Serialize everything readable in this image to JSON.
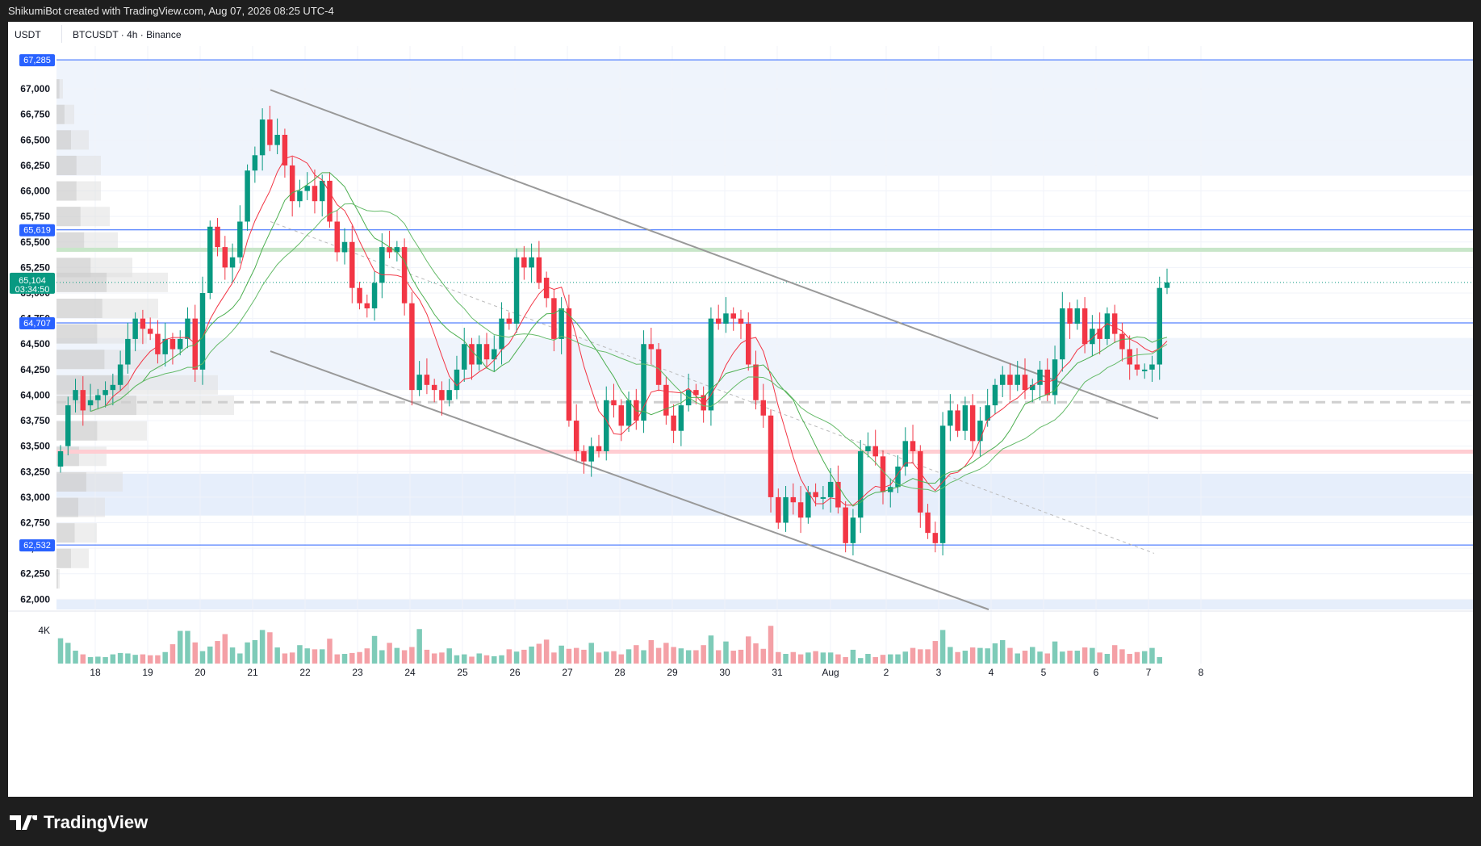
{
  "header": {
    "credit": "ShikumiBot created with TradingView.com, Aug 07, 2026 08:25 UTC-4"
  },
  "topbar": {
    "unit": "USDT",
    "symbol": "BTCUSDT · 4h · Binance"
  },
  "footer": {
    "brand": "TradingView"
  },
  "colors": {
    "up": "#089981",
    "down": "#f23645",
    "upVol": "#7ecbb8",
    "downVol": "#f4a0a6",
    "level": "#2962ff",
    "trend": "#999999"
  },
  "chart_data": {
    "type": "candlestick",
    "symbol": "BTCUSDT",
    "interval": "4h",
    "exchange": "Binance",
    "ylim": [
      61900,
      67450
    ],
    "y_ticks": [
      "62,000",
      "62,250",
      "62,500",
      "62,750",
      "63,000",
      "63,250",
      "63,500",
      "63,750",
      "64,000",
      "64,250",
      "64,500",
      "64,750",
      "65,000",
      "65,250",
      "65,500",
      "65,750",
      "66,000",
      "66,250",
      "66,500",
      "66,750",
      "67,000"
    ],
    "x_ticks": [
      "18",
      "19",
      "20",
      "21",
      "22",
      "23",
      "24",
      "25",
      "26",
      "27",
      "28",
      "29",
      "30",
      "31",
      "Aug",
      "2",
      "3",
      "4",
      "5",
      "6",
      "7",
      "8"
    ],
    "price_labels": [
      {
        "text": "67,285",
        "value": 67285,
        "kind": "level"
      },
      {
        "text": "65,619",
        "value": 65619,
        "kind": "level"
      },
      {
        "text": "65,104",
        "sub": "03:34:50",
        "value": 65104,
        "kind": "last"
      },
      {
        "text": "64,707",
        "value": 64707,
        "kind": "level"
      },
      {
        "text": "62,532",
        "value": 62532,
        "kind": "level"
      }
    ],
    "volume_tick": "4K",
    "candles_open_close": [
      [
        63300,
        63450
      ],
      [
        63500,
        63900
      ],
      [
        63950,
        64050
      ],
      [
        64050,
        63850
      ],
      [
        63900,
        63950
      ],
      [
        63950,
        64000
      ],
      [
        64000,
        64050
      ],
      [
        64050,
        64100
      ],
      [
        64100,
        64300
      ],
      [
        64300,
        64550
      ],
      [
        64550,
        64750
      ],
      [
        64750,
        64650
      ],
      [
        64650,
        64600
      ],
      [
        64600,
        64400
      ],
      [
        64400,
        64550
      ],
      [
        64550,
        64450
      ],
      [
        64450,
        64550
      ],
      [
        64550,
        64750
      ],
      [
        64750,
        64250
      ],
      [
        64250,
        65000
      ],
      [
        65000,
        65650
      ],
      [
        65650,
        65450
      ],
      [
        65450,
        65250
      ],
      [
        65250,
        65350
      ],
      [
        65350,
        65700
      ],
      [
        65700,
        66200
      ],
      [
        66200,
        66350
      ],
      [
        66350,
        66700
      ],
      [
        66700,
        66450
      ],
      [
        66450,
        66550
      ],
      [
        66550,
        66250
      ],
      [
        66250,
        65900
      ],
      [
        65900,
        66000
      ],
      [
        66000,
        66050
      ],
      [
        66050,
        65900
      ],
      [
        65900,
        66100
      ],
      [
        66100,
        65700
      ],
      [
        65700,
        65400
      ],
      [
        65400,
        65500
      ],
      [
        65500,
        65050
      ],
      [
        65050,
        64900
      ],
      [
        64900,
        64850
      ],
      [
        64850,
        65100
      ],
      [
        65100,
        65450
      ],
      [
        65450,
        65400
      ],
      [
        65400,
        65450
      ],
      [
        65450,
        64900
      ],
      [
        64900,
        64050
      ],
      [
        64050,
        64200
      ],
      [
        64200,
        64100
      ],
      [
        64100,
        64050
      ],
      [
        64050,
        63950
      ],
      [
        63950,
        64050
      ],
      [
        64050,
        64250
      ],
      [
        64250,
        64500
      ],
      [
        64500,
        64300
      ],
      [
        64300,
        64500
      ],
      [
        64500,
        64350
      ],
      [
        64350,
        64450
      ],
      [
        64450,
        64750
      ],
      [
        64750,
        64700
      ],
      [
        64700,
        65350
      ],
      [
        65350,
        65250
      ],
      [
        65250,
        65350
      ],
      [
        65350,
        65100
      ],
      [
        65150,
        64950
      ],
      [
        64950,
        64550
      ],
      [
        64550,
        64850
      ],
      [
        64850,
        63750
      ],
      [
        63750,
        63450
      ],
      [
        63450,
        63350
      ],
      [
        63350,
        63500
      ],
      [
        63500,
        63450
      ],
      [
        63450,
        63950
      ],
      [
        63950,
        63900
      ],
      [
        63900,
        63700
      ],
      [
        63700,
        63950
      ],
      [
        63950,
        63750
      ],
      [
        63750,
        64500
      ],
      [
        64500,
        64450
      ],
      [
        64450,
        64100
      ],
      [
        64100,
        63800
      ],
      [
        63800,
        63650
      ],
      [
        63650,
        63900
      ],
      [
        63900,
        64050
      ],
      [
        64050,
        64000
      ],
      [
        64000,
        63850
      ],
      [
        63850,
        64750
      ],
      [
        64750,
        64700
      ],
      [
        64700,
        64800
      ],
      [
        64800,
        64750
      ],
      [
        64750,
        64700
      ],
      [
        64700,
        64300
      ],
      [
        64300,
        63950
      ],
      [
        63950,
        63800
      ],
      [
        63800,
        63000
      ],
      [
        63000,
        62750
      ],
      [
        62750,
        63000
      ],
      [
        63000,
        62950
      ],
      [
        62950,
        62800
      ],
      [
        62800,
        63050
      ],
      [
        63050,
        63000
      ],
      [
        63000,
        63000
      ],
      [
        63000,
        63150
      ],
      [
        63150,
        62900
      ],
      [
        62900,
        62550
      ],
      [
        62550,
        62800
      ],
      [
        62800,
        63450
      ],
      [
        63450,
        63500
      ],
      [
        63500,
        63400
      ],
      [
        63400,
        63050
      ],
      [
        63050,
        63100
      ],
      [
        63100,
        63300
      ],
      [
        63300,
        63550
      ],
      [
        63550,
        63450
      ],
      [
        63450,
        62850
      ],
      [
        62850,
        62650
      ],
      [
        62650,
        62550
      ],
      [
        62550,
        63700
      ],
      [
        63700,
        63850
      ],
      [
        63850,
        63650
      ],
      [
        63650,
        63900
      ],
      [
        63900,
        63550
      ],
      [
        63550,
        63750
      ],
      [
        63750,
        63900
      ],
      [
        63900,
        64100
      ],
      [
        64100,
        64200
      ],
      [
        64200,
        64100
      ],
      [
        64100,
        64200
      ],
      [
        64200,
        64050
      ],
      [
        64050,
        64100
      ],
      [
        64100,
        64250
      ],
      [
        64250,
        64000
      ],
      [
        64000,
        64350
      ],
      [
        64350,
        64850
      ],
      [
        64850,
        64700
      ],
      [
        64700,
        64850
      ],
      [
        64850,
        64500
      ],
      [
        64500,
        64650
      ],
      [
        64650,
        64550
      ],
      [
        64550,
        64800
      ],
      [
        64800,
        64600
      ],
      [
        64600,
        64450
      ],
      [
        64450,
        64300
      ],
      [
        64300,
        64250
      ],
      [
        64250,
        64250
      ],
      [
        64250,
        64300
      ],
      [
        64300,
        65050
      ],
      [
        65050,
        65104
      ]
    ],
    "volume_fractions": [
      0.55,
      0.45,
      0.28,
      0.2,
      0.14,
      0.15,
      0.14,
      0.2,
      0.23,
      0.22,
      0.19,
      0.2,
      0.18,
      0.18,
      0.25,
      0.42,
      0.71,
      0.71,
      0.46,
      0.27,
      0.37,
      0.49,
      0.64,
      0.35,
      0.22,
      0.46,
      0.51,
      0.73,
      0.68,
      0.35,
      0.22,
      0.24,
      0.4,
      0.33,
      0.31,
      0.31,
      0.54,
      0.2,
      0.21,
      0.23,
      0.25,
      0.33,
      0.6,
      0.29,
      0.45,
      0.34,
      0.29,
      0.36,
      0.75,
      0.3,
      0.22,
      0.24,
      0.33,
      0.18,
      0.2,
      0.15,
      0.22,
      0.18,
      0.16,
      0.18,
      0.31,
      0.26,
      0.3,
      0.37,
      0.43,
      0.52,
      0.24,
      0.39,
      0.32,
      0.34,
      0.3,
      0.45,
      0.24,
      0.26,
      0.27,
      0.2,
      0.31,
      0.4,
      0.29,
      0.51,
      0.34,
      0.45,
      0.36,
      0.33,
      0.29,
      0.29,
      0.4,
      0.61,
      0.29,
      0.48,
      0.28,
      0.3,
      0.59,
      0.44,
      0.32,
      0.82,
      0.25,
      0.21,
      0.25,
      0.2,
      0.24,
      0.27,
      0.24,
      0.24,
      0.2,
      0.14,
      0.3,
      0.12,
      0.21,
      0.14,
      0.19,
      0.2,
      0.2,
      0.26,
      0.34,
      0.31,
      0.31,
      0.49,
      0.73,
      0.36,
      0.25,
      0.28,
      0.35,
      0.34,
      0.33,
      0.44,
      0.51,
      0.34,
      0.22,
      0.28,
      0.36,
      0.26,
      0.22,
      0.48,
      0.26,
      0.28,
      0.28,
      0.35,
      0.34,
      0.24,
      0.21,
      0.4,
      0.31,
      0.21,
      0.25,
      0.27,
      0.34,
      0.14
    ]
  }
}
